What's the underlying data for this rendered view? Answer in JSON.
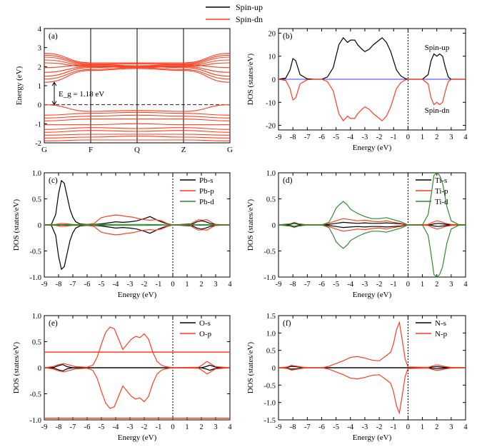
{
  "colors": {
    "up": "#000000",
    "dn": "#ff3c1e",
    "green": "#2e8b2e",
    "blue": "#3b3bff",
    "axis": "#000000"
  },
  "legend_top": {
    "up_label": "Spin-up",
    "dn_label": "Spin-dn"
  },
  "chart_data": [
    {
      "id": "a",
      "panel_label": "(a)",
      "type": "line",
      "title": "",
      "xlabel": "",
      "ylabel": "Energy (eV)",
      "ylim": [
        -2,
        4
      ],
      "yticks": [
        -2,
        -1,
        0,
        1,
        2,
        3,
        4
      ],
      "kpoints": [
        "G",
        "F",
        "Q",
        "Z",
        "G"
      ],
      "gap_label": "E_g = 1.18 eV",
      "gap_ev": 1.18,
      "series_note_up": "Spin-up",
      "series_note_dn": "Spin-dn",
      "conduction_bands": [
        [
          2.7,
          2.2,
          2.2,
          2.2,
          2.7
        ],
        [
          2.6,
          2.15,
          2.15,
          2.15,
          2.6
        ],
        [
          2.5,
          2.1,
          2.05,
          2.1,
          2.5
        ],
        [
          2.35,
          2.05,
          2.0,
          2.05,
          2.35
        ],
        [
          2.2,
          2.0,
          1.95,
          2.0,
          2.2
        ],
        [
          1.95,
          2.1,
          2.15,
          2.1,
          1.95
        ],
        [
          1.7,
          2.0,
          2.05,
          2.0,
          1.7
        ],
        [
          1.5,
          1.95,
          2.0,
          1.95,
          1.5
        ],
        [
          1.35,
          1.85,
          1.95,
          1.85,
          1.35
        ],
        [
          1.18,
          1.8,
          1.9,
          1.8,
          1.18
        ]
      ],
      "valence_bands": [
        [
          0.0,
          -0.35,
          -0.3,
          -0.35,
          0.0
        ],
        [
          -0.55,
          -0.45,
          -0.4,
          -0.45,
          -0.55
        ],
        [
          -0.7,
          -0.6,
          -0.55,
          -0.6,
          -0.7
        ],
        [
          -0.85,
          -0.75,
          -0.75,
          -0.75,
          -0.85
        ],
        [
          -1.05,
          -1.05,
          -1.0,
          -1.05,
          -1.05
        ],
        [
          -1.3,
          -1.2,
          -1.25,
          -1.2,
          -1.3
        ],
        [
          -1.45,
          -1.35,
          -1.4,
          -1.35,
          -1.45
        ],
        [
          -1.6,
          -1.55,
          -1.55,
          -1.55,
          -1.6
        ],
        [
          -1.75,
          -1.7,
          -1.65,
          -1.7,
          -1.75
        ],
        [
          -1.9,
          -1.85,
          -1.85,
          -1.85,
          -1.9
        ]
      ]
    },
    {
      "id": "b",
      "panel_label": "(b)",
      "type": "line",
      "xlabel": "Energy (eV)",
      "ylabel": "DOS (states/eV)",
      "xlim": [
        -9,
        4
      ],
      "ylim": [
        -22,
        22
      ],
      "xticks": [
        -9,
        -8,
        -7,
        -6,
        -5,
        -4,
        -3,
        -2,
        -1,
        0,
        1,
        2,
        3,
        4
      ],
      "yticks": [
        -20,
        -10,
        0,
        10,
        20
      ],
      "annotations": [
        "Spin-up",
        "Spin-dn"
      ],
      "mirror": true,
      "series": [
        {
          "name": "Spin-up",
          "color_key": "up",
          "x": [
            -9,
            -8.5,
            -8.2,
            -8.0,
            -7.8,
            -7.5,
            -7.0,
            -6.5,
            -6.0,
            -5.6,
            -5.2,
            -5.0,
            -4.8,
            -4.5,
            -4.2,
            -4.0,
            -3.7,
            -3.5,
            -3.2,
            -3.0,
            -2.7,
            -2.4,
            -2.0,
            -1.8,
            -1.5,
            -1.2,
            -1.0,
            -0.8,
            -0.5,
            -0.2,
            0,
            0.5,
            1.0,
            1.4,
            1.6,
            1.8,
            2.0,
            2.2,
            2.4,
            2.6,
            2.8,
            3.0,
            3.5,
            4.0
          ],
          "y": [
            0,
            0.5,
            4,
            9,
            8,
            2,
            0.2,
            0,
            0,
            1,
            5,
            10,
            15,
            18,
            16,
            17,
            17,
            15,
            13,
            12,
            13,
            15,
            17,
            18,
            16,
            12,
            8,
            4,
            1.5,
            0.3,
            0,
            0,
            0,
            2,
            8,
            11,
            10,
            11,
            10,
            5,
            1,
            0,
            0,
            0
          ]
        },
        {
          "name": "Spin-dn",
          "color_key": "dn",
          "x": [
            -9,
            -8.5,
            -8.2,
            -8.0,
            -7.8,
            -7.5,
            -7.0,
            -6.5,
            -6.0,
            -5.6,
            -5.2,
            -5.0,
            -4.8,
            -4.5,
            -4.2,
            -4.0,
            -3.7,
            -3.5,
            -3.2,
            -3.0,
            -2.7,
            -2.4,
            -2.0,
            -1.8,
            -1.5,
            -1.2,
            -1.0,
            -0.8,
            -0.5,
            -0.2,
            0,
            0.5,
            1.0,
            1.4,
            1.6,
            1.8,
            2.0,
            2.2,
            2.4,
            2.6,
            2.8,
            3.0,
            3.5,
            4.0
          ],
          "y": [
            0,
            -0.5,
            -4,
            -9,
            -8,
            -2,
            -0.2,
            0,
            0,
            -1,
            -5,
            -10,
            -15,
            -18,
            -16,
            -17,
            -17,
            -15,
            -13,
            -12,
            -13,
            -15,
            -17,
            -18,
            -16,
            -12,
            -8,
            -4,
            -1.5,
            -0.3,
            0,
            0,
            0,
            -2,
            -8,
            -11,
            -10,
            -11,
            -10,
            -5,
            -1,
            0,
            0,
            0
          ]
        }
      ]
    },
    {
      "id": "c",
      "panel_label": "(c)",
      "type": "line",
      "xlabel": "Energy (eV)",
      "ylabel": "DOS (states/eV)",
      "xlim": [
        -9,
        4
      ],
      "ylim": [
        -1.0,
        1.0
      ],
      "xticks": [
        -9,
        -8,
        -7,
        -6,
        -5,
        -4,
        -3,
        -2,
        -1,
        0,
        1,
        2,
        3,
        4
      ],
      "yticks": [
        -1.0,
        -0.5,
        0,
        0.5,
        1.0
      ],
      "ytick_labels": [
        "-1.0",
        "-0.5",
        "0",
        "0.5",
        "1.0"
      ],
      "legend": [
        "Pb-s",
        "Pb-p",
        "Pb-d"
      ],
      "mirror": true,
      "series": [
        {
          "name": "Pb-s",
          "color_key": "up",
          "x": [
            -9,
            -8.5,
            -8.2,
            -8.0,
            -7.8,
            -7.6,
            -7.4,
            -7.2,
            -7.0,
            -6.8,
            -6.5,
            -6.0,
            -5.5,
            -5.0,
            -4.5,
            -4.0,
            -3.5,
            -3.0,
            -2.5,
            -2.0,
            -1.6,
            -1.3,
            -1.0,
            -0.5,
            0,
            1.4,
            1.7,
            2.0,
            2.3,
            2.6,
            3.0,
            4.0
          ],
          "y": [
            0,
            0.01,
            0.2,
            0.6,
            0.85,
            0.8,
            0.55,
            0.3,
            0.15,
            0.06,
            0.02,
            0.01,
            0.01,
            0.02,
            0.04,
            0.06,
            0.05,
            0.06,
            0.08,
            0.12,
            0.16,
            0.12,
            0.08,
            0.03,
            0,
            0.02,
            0.06,
            0.08,
            0.06,
            0.03,
            0.01,
            0
          ]
        },
        {
          "name": "Pb-p",
          "color_key": "dn",
          "x": [
            -9,
            -8.2,
            -7.8,
            -7.4,
            -7.0,
            -6.5,
            -6.0,
            -5.5,
            -5.2,
            -5.0,
            -4.5,
            -4.0,
            -3.6,
            -3.2,
            -2.8,
            -2.4,
            -2.0,
            -1.6,
            -1.2,
            -0.8,
            -0.4,
            0,
            1.2,
            1.5,
            1.8,
            2.1,
            2.4,
            2.7,
            3.0,
            4.0
          ],
          "y": [
            0,
            0.01,
            0.03,
            0.02,
            0.01,
            0.01,
            0.01,
            0.03,
            0.1,
            0.14,
            0.17,
            0.19,
            0.18,
            0.16,
            0.15,
            0.12,
            0.1,
            0.09,
            0.1,
            0.08,
            0.03,
            0,
            0.01,
            0.06,
            0.1,
            0.09,
            0.1,
            0.05,
            0.01,
            0
          ]
        },
        {
          "name": "Pb-d",
          "color_key": "green",
          "x": [
            -9,
            -8,
            -6,
            -4,
            -2,
            0,
            2,
            4
          ],
          "y": [
            0,
            0.005,
            0.005,
            0.01,
            0.01,
            0,
            0.005,
            0
          ]
        }
      ]
    },
    {
      "id": "d",
      "panel_label": "(d)",
      "type": "line",
      "xlabel": "Energy (eV)",
      "ylabel": "DOS (states/eV)",
      "xlim": [
        -9,
        4
      ],
      "ylim": [
        -1.0,
        1.0
      ],
      "xticks": [
        -9,
        -8,
        -7,
        -6,
        -5,
        -4,
        -3,
        -2,
        -1,
        0,
        1,
        2,
        3,
        4
      ],
      "yticks": [
        -1.0,
        -0.5,
        0,
        0.5,
        1.0
      ],
      "ytick_labels": [
        "-1.0",
        "-0.5",
        "0",
        "0.5",
        "1.0"
      ],
      "legend": [
        "Ti-s",
        "Ti-p",
        "Ti-d"
      ],
      "mirror": true,
      "series": [
        {
          "name": "Ti-s",
          "color_key": "up",
          "x": [
            -9,
            -8.2,
            -7.9,
            -7.6,
            -7.0,
            -6.0,
            -5.5,
            -5.0,
            -4.5,
            -4.0,
            -3.5,
            -3.0,
            -2.5,
            -2.0,
            -1.5,
            -1.0,
            -0.5,
            0,
            1.5,
            1.8,
            2.1,
            2.4,
            3.0,
            4.0
          ],
          "y": [
            0,
            0.01,
            0.03,
            0.01,
            0,
            0,
            0.01,
            0.03,
            0.05,
            0.04,
            0.03,
            0.04,
            0.03,
            0.03,
            0.04,
            0.03,
            0.02,
            0,
            0,
            0.02,
            0.03,
            0.02,
            0,
            0
          ]
        },
        {
          "name": "Ti-p",
          "color_key": "dn",
          "x": [
            -9,
            -8.2,
            -7.9,
            -7.6,
            -7.0,
            -6.0,
            -5.5,
            -5.0,
            -4.5,
            -4.0,
            -3.5,
            -3.0,
            -2.5,
            -2.0,
            -1.5,
            -1.0,
            -0.5,
            0,
            1.4,
            1.7,
            2.0,
            2.3,
            2.6,
            3.0,
            4.0
          ],
          "y": [
            0,
            0.02,
            0.05,
            0.02,
            0,
            0,
            0.03,
            0.08,
            0.12,
            0.1,
            0.08,
            0.09,
            0.07,
            0.06,
            0.08,
            0.05,
            0.03,
            0,
            0.01,
            0.05,
            0.08,
            0.06,
            0.03,
            0.01,
            0
          ]
        },
        {
          "name": "Ti-d",
          "color_key": "green",
          "x": [
            -9,
            -8.2,
            -7.9,
            -7.6,
            -7.0,
            -6.0,
            -5.5,
            -5.2,
            -5.0,
            -4.8,
            -4.5,
            -4.2,
            -4.0,
            -3.5,
            -3.0,
            -2.5,
            -2.0,
            -1.5,
            -1.0,
            -0.5,
            0,
            1.0,
            1.4,
            1.6,
            1.8,
            2.0,
            2.2,
            2.4,
            2.7,
            3.0,
            3.5,
            4.0
          ],
          "y": [
            0,
            0.02,
            0.04,
            0.02,
            0,
            0,
            0.05,
            0.2,
            0.32,
            0.38,
            0.45,
            0.38,
            0.3,
            0.22,
            0.16,
            0.12,
            0.12,
            0.14,
            0.1,
            0.06,
            0,
            0,
            0.2,
            0.55,
            0.95,
            1.0,
            0.95,
            0.8,
            0.35,
            0.08,
            0.01,
            0
          ]
        }
      ]
    },
    {
      "id": "e",
      "panel_label": "(e)",
      "type": "line",
      "xlabel": "Energy (eV)",
      "ylabel": "DOS (states/eV)",
      "xlim": [
        -9,
        4
      ],
      "ylim": [
        -1.0,
        1.0
      ],
      "xticks": [
        -9,
        -8,
        -7,
        -6,
        -5,
        -4,
        -3,
        -2,
        -1,
        0,
        1,
        2,
        3,
        4
      ],
      "yticks": [
        -1.0,
        -0.5,
        0,
        0.5,
        1.0
      ],
      "ytick_labels": [
        "-1.0",
        "-0.5",
        "0",
        "0.5",
        "1.0"
      ],
      "legend": [
        "O-s",
        "O-p"
      ],
      "mirror": true,
      "flat_red_line": 0.3,
      "series": [
        {
          "name": "O-s",
          "color_key": "up",
          "x": [
            -9,
            -8.3,
            -8.0,
            -7.7,
            -7.4,
            -7.0,
            -6.0,
            0,
            2.0,
            2.3,
            2.6,
            2.9,
            3.2,
            4.0
          ],
          "y": [
            0,
            0.01,
            0.04,
            0.06,
            0.02,
            0,
            0,
            0,
            0,
            0.02,
            0.05,
            0.02,
            0,
            0
          ]
        },
        {
          "name": "O-p",
          "color_key": "dn",
          "x": [
            -9,
            -8.4,
            -8.0,
            -7.6,
            -7.2,
            -6.8,
            -6.0,
            -5.6,
            -5.3,
            -5.0,
            -4.7,
            -4.4,
            -4.1,
            -3.8,
            -3.5,
            -3.2,
            -2.9,
            -2.6,
            -2.3,
            -2.0,
            -1.7,
            -1.4,
            -1.1,
            -0.8,
            -0.5,
            0,
            1.8,
            2.1,
            2.4,
            2.7,
            3.0,
            4.0
          ],
          "y": [
            0,
            0.02,
            0.06,
            0.08,
            0.05,
            0.02,
            0.01,
            0.05,
            0.2,
            0.45,
            0.68,
            0.78,
            0.75,
            0.55,
            0.35,
            0.45,
            0.55,
            0.6,
            0.58,
            0.65,
            0.55,
            0.3,
            0.12,
            0.05,
            0.02,
            0,
            0.01,
            0.06,
            0.12,
            0.07,
            0.02,
            0
          ]
        }
      ]
    },
    {
      "id": "f",
      "panel_label": "(f)",
      "type": "line",
      "xlabel": "Energy (eV)",
      "ylabel": "DOS (states/eV)",
      "xlim": [
        -9,
        4
      ],
      "ylim": [
        -1.5,
        1.5
      ],
      "xticks": [
        -9,
        -8,
        -7,
        -6,
        -5,
        -4,
        -3,
        -2,
        -1,
        0,
        1,
        2,
        3,
        4
      ],
      "yticks": [
        -1.5,
        -1.0,
        -0.5,
        0,
        0.5,
        1.0,
        1.5
      ],
      "ytick_labels": [
        "-1.5",
        "-1.0",
        "-0.5",
        "0",
        "0.5",
        "1.0",
        "1.5"
      ],
      "legend": [
        "N-s",
        "N-p"
      ],
      "mirror": true,
      "series": [
        {
          "name": "N-s",
          "color_key": "up",
          "x": [
            -9,
            -8.4,
            -8.1,
            -7.8,
            -7.4,
            -7.0,
            -6.0,
            0,
            1.4,
            1.7,
            2.0,
            2.3,
            2.6,
            3.0,
            4.0
          ],
          "y": [
            0,
            0.01,
            0.04,
            0.03,
            0.01,
            0,
            0,
            0,
            0,
            0.02,
            0.03,
            0.02,
            0.01,
            0,
            0
          ]
        },
        {
          "name": "N-p",
          "color_key": "dn",
          "x": [
            -9,
            -8.4,
            -8.1,
            -7.8,
            -7.4,
            -7.0,
            -6.0,
            -5.5,
            -5.0,
            -4.5,
            -4.0,
            -3.5,
            -3.0,
            -2.5,
            -2.0,
            -1.5,
            -1.2,
            -1.0,
            -0.8,
            -0.6,
            -0.4,
            -0.2,
            0,
            1.4,
            1.7,
            2.0,
            2.3,
            2.6,
            3.0,
            4.0
          ],
          "y": [
            0,
            0.02,
            0.07,
            0.05,
            0.02,
            0,
            0,
            0.04,
            0.12,
            0.2,
            0.3,
            0.32,
            0.28,
            0.22,
            0.2,
            0.35,
            0.45,
            0.7,
            1.1,
            1.3,
            0.8,
            0.25,
            0.02,
            0.01,
            0.05,
            0.08,
            0.06,
            0.03,
            0.01,
            0
          ]
        }
      ]
    }
  ]
}
